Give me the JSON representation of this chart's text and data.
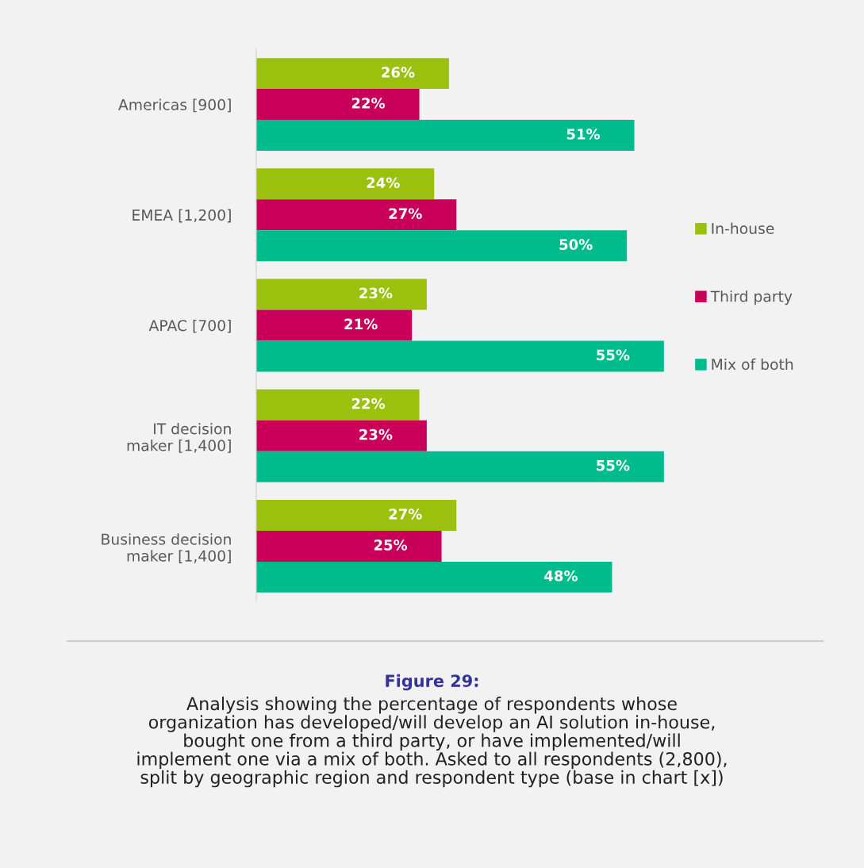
{
  "chart_data": {
    "type": "bar",
    "orientation": "horizontal",
    "title": "Figure 29:",
    "annotations": [
      "Analysis showing the percentage of respondents whose\norganization has developed/will develop an AI solution in-house,\nbought one from a third party, or have implemented/will\nimplement one via a mix of both. Asked to all respondents (2,800),\nsplit by geographic region and respondent type (base in chart [x])"
    ],
    "categories": [
      "Americas [900]",
      "EMEA [1,200]",
      "APAC [700]",
      "IT decision\nmaker [1,400]",
      "Business decision\nmaker [1,400]"
    ],
    "series": [
      {
        "name": "In-house",
        "color": "#9bc10e",
        "values": [
          26,
          24,
          23,
          22,
          27
        ],
        "value_labels": [
          "26%",
          "24%",
          "23%",
          "22%",
          "27%"
        ]
      },
      {
        "name": "Third party",
        "color": "#c8005a",
        "values": [
          22,
          27,
          21,
          23,
          25
        ],
        "value_labels": [
          "22%",
          "27%",
          "21%",
          "23%",
          "25%"
        ]
      },
      {
        "name": "Mix of both",
        "color": "#00bc8c",
        "values": [
          51,
          50,
          55,
          55,
          48
        ],
        "value_labels": [
          "51%",
          "50%",
          "55%",
          "55%",
          "48%"
        ]
      }
    ],
    "legend": "right",
    "grid": false
  }
}
